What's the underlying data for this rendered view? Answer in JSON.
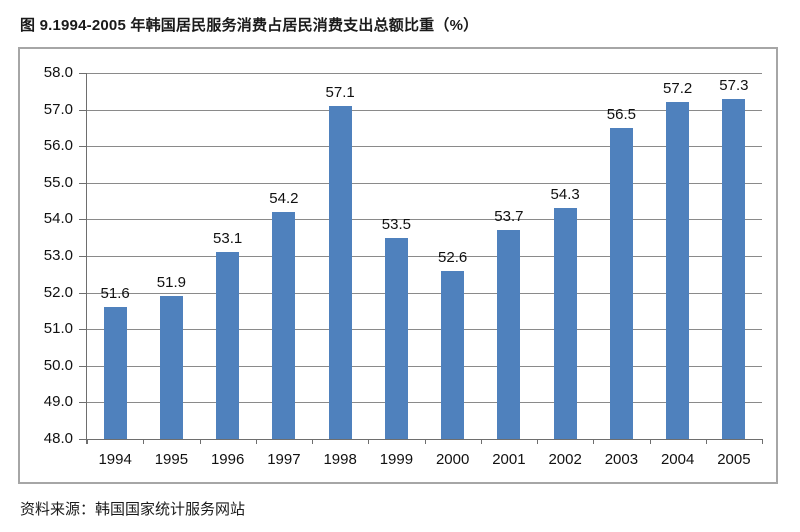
{
  "title": "图 9.1994-2005 年韩国居民服务消费占居民消费支出总额比重（%）",
  "source": "资料来源：韩国国家统计服务网站",
  "chart_data": {
    "type": "bar",
    "title": "图 9.1994-2005 年韩国居民服务消费占居民消费支出总额比重（%）",
    "categories": [
      "1994",
      "1995",
      "1996",
      "1997",
      "1998",
      "1999",
      "2000",
      "2001",
      "2002",
      "2003",
      "2004",
      "2005"
    ],
    "values": [
      51.6,
      51.9,
      53.1,
      54.2,
      57.1,
      53.5,
      52.6,
      53.7,
      54.3,
      56.5,
      57.2,
      57.3
    ],
    "value_labels": [
      "51.6",
      "51.9",
      "53.1",
      "54.2",
      "57.1",
      "53.5",
      "52.6",
      "53.7",
      "54.3",
      "56.5",
      "57.2",
      "57.3"
    ],
    "xlabel": "",
    "ylabel": "",
    "ylim": [
      48.0,
      58.0
    ],
    "ytick_step": 1.0,
    "ytick_labels": [
      "58.0",
      "57.0",
      "56.0",
      "55.0",
      "54.0",
      "53.0",
      "52.0",
      "51.0",
      "50.0",
      "49.0",
      "48.0"
    ],
    "grid": "horizontal",
    "legend": "none",
    "bar_color": "#4f81bd",
    "gridline_color": "#8a8a8a",
    "axis_color": "#6e6e6e",
    "frame_border_color": "#a6a6a6",
    "text_color": "#111111",
    "source_note": "资料来源：韩国国家统计服务网站"
  }
}
